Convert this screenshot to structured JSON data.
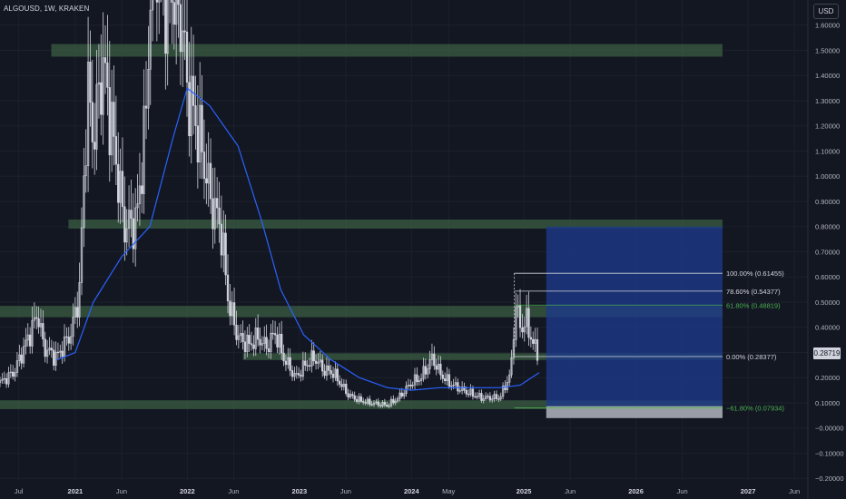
{
  "header": {
    "symbol": "ALGOUSD, 1W, KRAKEN"
  },
  "price_axis": {
    "currency": "USD",
    "current_price": "0.28719"
  },
  "colors": {
    "background": "#131722",
    "candle": "#d1d4dc",
    "ma_line": "#2962ff",
    "zone_fill": "#3b5e43",
    "target_box": "#1c3a8c",
    "stop_box": "#b2b5be",
    "fib_green": "#4caf50",
    "fib_white": "#d1d4dc",
    "axis_text": "#b2b5be"
  },
  "chart_data": {
    "type": "candlestick",
    "symbol": "ALGOUSD",
    "timeframe": "1W",
    "exchange": "KRAKEN",
    "ylim": [
      -0.21,
      1.7
    ],
    "xlim": [
      "2020-05-01",
      "2027-07-15"
    ],
    "y_ticks": [
      "−0.20000",
      "−0.10000",
      "−0.00000",
      "0.10000",
      "0.20000",
      "0.30000",
      "0.40000",
      "0.50000",
      "0.60000",
      "0.70000",
      "0.80000",
      "0.90000",
      "1.00000",
      "1.10000",
      "1.20000",
      "1.30000",
      "1.40000",
      "1.50000",
      "1.60000"
    ],
    "y_tick_values": [
      -0.2,
      -0.1,
      0,
      0.1,
      0.2,
      0.3,
      0.4,
      0.5,
      0.6,
      0.7,
      0.8,
      0.9,
      1.0,
      1.1,
      1.2,
      1.3,
      1.4,
      1.5,
      1.6
    ],
    "x_ticks": [
      {
        "label": "Jul",
        "date": "2020-07-01",
        "bold": false
      },
      {
        "label": "2021",
        "date": "2021-01-01",
        "bold": true
      },
      {
        "label": "Jun",
        "date": "2021-06-01",
        "bold": false
      },
      {
        "label": "2022",
        "date": "2022-01-01",
        "bold": true
      },
      {
        "label": "Jun",
        "date": "2022-06-01",
        "bold": false
      },
      {
        "label": "2023",
        "date": "2023-01-01",
        "bold": true
      },
      {
        "label": "Jun",
        "date": "2023-06-01",
        "bold": false
      },
      {
        "label": "2024",
        "date": "2024-01-01",
        "bold": true
      },
      {
        "label": "May",
        "date": "2024-05-01",
        "bold": false
      },
      {
        "label": "2025",
        "date": "2025-01-01",
        "bold": true
      },
      {
        "label": "Jun",
        "date": "2025-06-01",
        "bold": false
      },
      {
        "label": "2026",
        "date": "2026-01-01",
        "bold": true
      },
      {
        "label": "Jun",
        "date": "2026-06-01",
        "bold": false
      },
      {
        "label": "2027",
        "date": "2027-01-01",
        "bold": true
      },
      {
        "label": "Jun",
        "date": "2027-06-01",
        "bold": false
      }
    ],
    "price_path": [
      [
        "2020-05-01",
        0.18
      ],
      [
        "2020-06-15",
        0.22
      ],
      [
        "2020-08-15",
        0.4
      ],
      [
        "2020-09-01",
        0.46
      ],
      [
        "2020-09-20",
        0.32
      ],
      [
        "2020-11-01",
        0.28
      ],
      [
        "2020-12-20",
        0.38
      ],
      [
        "2021-01-15",
        0.55
      ],
      [
        "2021-02-10",
        1.35
      ],
      [
        "2021-03-01",
        1.15
      ],
      [
        "2021-04-01",
        1.45
      ],
      [
        "2021-05-10",
        1.1
      ],
      [
        "2021-06-10",
        0.8
      ],
      [
        "2021-07-20",
        0.82
      ],
      [
        "2021-08-20",
        1.25
      ],
      [
        "2021-09-10",
        2.0
      ],
      [
        "2021-10-20",
        1.7
      ],
      [
        "2021-11-20",
        1.75
      ],
      [
        "2021-12-15",
        1.6
      ],
      [
        "2022-01-01",
        1.35
      ],
      [
        "2022-02-10",
        1.15
      ],
      [
        "2022-03-20",
        0.9
      ],
      [
        "2022-04-20",
        0.8
      ],
      [
        "2022-05-15",
        0.5
      ],
      [
        "2022-06-15",
        0.36
      ],
      [
        "2022-07-20",
        0.33
      ],
      [
        "2022-08-20",
        0.36
      ],
      [
        "2022-09-15",
        0.32
      ],
      [
        "2022-10-15",
        0.38
      ],
      [
        "2022-11-10",
        0.28
      ],
      [
        "2022-12-20",
        0.2
      ],
      [
        "2023-01-20",
        0.25
      ],
      [
        "2023-02-20",
        0.28
      ],
      [
        "2023-03-20",
        0.23
      ],
      [
        "2023-04-20",
        0.22
      ],
      [
        "2023-06-10",
        0.13
      ],
      [
        "2023-07-15",
        0.11
      ],
      [
        "2023-08-15",
        0.1
      ],
      [
        "2023-10-15",
        0.09
      ],
      [
        "2023-11-20",
        0.12
      ],
      [
        "2024-01-01",
        0.18
      ],
      [
        "2024-02-01",
        0.2
      ],
      [
        "2024-03-10",
        0.28
      ],
      [
        "2024-04-01",
        0.22
      ],
      [
        "2024-05-01",
        0.18
      ],
      [
        "2024-06-15",
        0.15
      ],
      [
        "2024-08-15",
        0.12
      ],
      [
        "2024-10-15",
        0.12
      ],
      [
        "2024-11-20",
        0.22
      ],
      [
        "2024-12-05",
        0.5
      ],
      [
        "2024-12-20",
        0.4
      ],
      [
        "2025-01-10",
        0.42
      ],
      [
        "2025-02-01",
        0.33
      ],
      [
        "2025-02-20",
        0.28719
      ]
    ],
    "ma_path": [
      [
        "2020-11-01",
        0.27
      ],
      [
        "2021-01-01",
        0.3
      ],
      [
        "2021-03-01",
        0.5
      ],
      [
        "2021-06-01",
        0.68
      ],
      [
        "2021-09-01",
        0.8
      ],
      [
        "2021-11-15",
        1.15
      ],
      [
        "2022-01-01",
        1.35
      ],
      [
        "2022-03-15",
        1.28
      ],
      [
        "2022-06-15",
        1.12
      ],
      [
        "2022-09-01",
        0.82
      ],
      [
        "2022-11-01",
        0.55
      ],
      [
        "2023-01-15",
        0.37
      ],
      [
        "2023-04-15",
        0.27
      ],
      [
        "2023-07-15",
        0.2
      ],
      [
        "2023-10-15",
        0.16
      ],
      [
        "2024-01-01",
        0.15
      ],
      [
        "2024-04-01",
        0.16
      ],
      [
        "2024-07-01",
        0.16
      ],
      [
        "2024-10-15",
        0.16
      ],
      [
        "2024-12-20",
        0.17
      ],
      [
        "2025-02-20",
        0.22
      ]
    ],
    "zones": [
      {
        "name": "zone-1.5",
        "y1": 1.475,
        "y2": 1.525,
        "x1": "2020-10-15",
        "x2": "2026-10-10"
      },
      {
        "name": "zone-0.81",
        "y1": 0.792,
        "y2": 0.828,
        "x1": "2020-12-10",
        "x2": "2026-10-10"
      },
      {
        "name": "zone-0.46",
        "y1": 0.44,
        "y2": 0.485,
        "x1": "2020-05-01",
        "x2": "2026-10-10"
      },
      {
        "name": "zone-0.28",
        "y1": 0.27,
        "y2": 0.297,
        "x1": "2022-07-01",
        "x2": "2026-10-10"
      },
      {
        "name": "zone-0.09",
        "y1": 0.075,
        "y2": 0.11,
        "x1": "2020-05-01",
        "x2": "2026-10-10"
      }
    ],
    "fibonacci": [
      {
        "label": "100.00% (0.61455)",
        "level": 0.61455,
        "color": "white"
      },
      {
        "label": "78.60% (0.54377)",
        "level": 0.54377,
        "color": "white"
      },
      {
        "label": "61.80% (0.48819)",
        "level": 0.48819,
        "color": "green"
      },
      {
        "label": "0.00% (0.28377)",
        "level": 0.28377,
        "color": "white"
      },
      {
        "label": "−61.80% (0.07934)",
        "level": 0.07934,
        "color": "green"
      }
    ],
    "fib_x1": "2024-12-01",
    "fib_x2": "2026-10-10",
    "position": {
      "x1": "2025-03-15",
      "x2": "2026-10-10",
      "entry": 0.0865,
      "target": 0.8,
      "stop": 0.0393
    }
  }
}
